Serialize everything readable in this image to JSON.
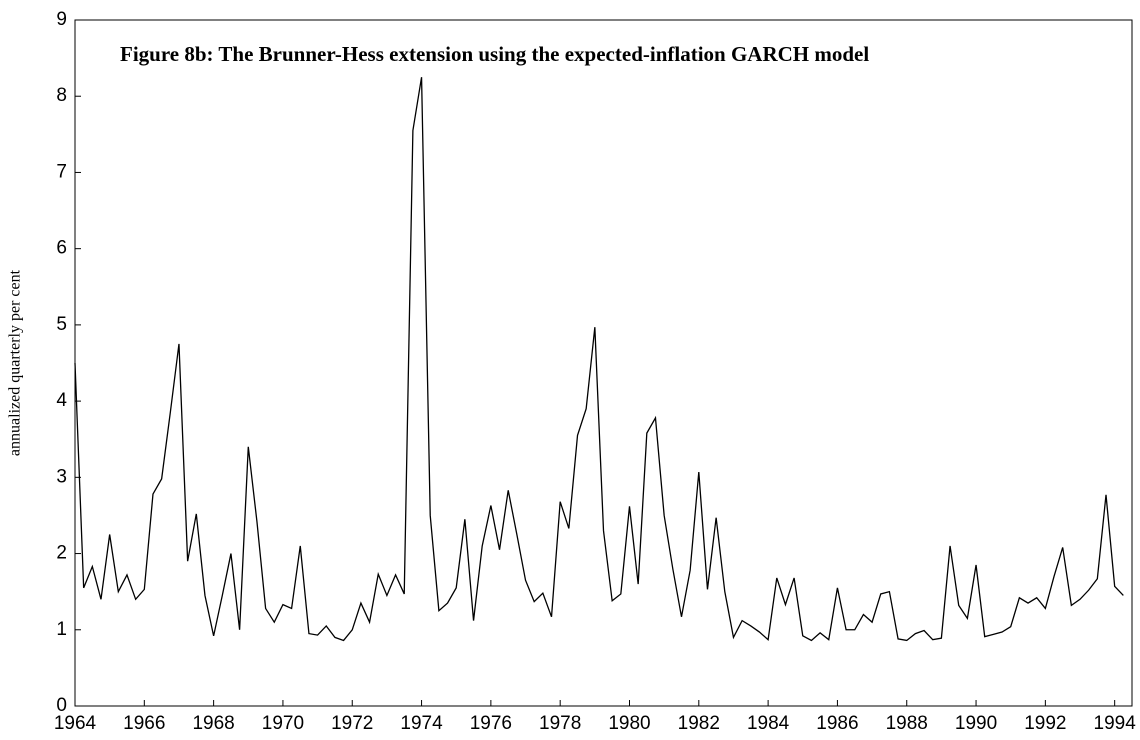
{
  "chart_data": {
    "type": "line",
    "title": "Figure 8b: The Brunner-Hess extension using the expected-inflation GARCH model",
    "y_label": "annualized quarterly per cent",
    "color": "#000000",
    "x": [
      1964,
      1964.25,
      1964.5,
      1964.75,
      1965,
      1965.25,
      1965.5,
      1965.75,
      1966,
      1966.25,
      1966.5,
      1966.75,
      1967,
      1967.25,
      1967.5,
      1967.75,
      1968,
      1968.25,
      1968.5,
      1968.75,
      1969,
      1969.25,
      1969.5,
      1969.75,
      1970,
      1970.25,
      1970.5,
      1970.75,
      1971,
      1971.25,
      1971.5,
      1971.75,
      1972,
      1972.25,
      1972.5,
      1972.75,
      1973,
      1973.25,
      1973.5,
      1973.75,
      1974,
      1974.25,
      1974.5,
      1974.75,
      1975,
      1975.25,
      1975.5,
      1975.75,
      1976,
      1976.25,
      1976.5,
      1976.75,
      1977,
      1977.25,
      1977.5,
      1977.75,
      1978,
      1978.25,
      1978.5,
      1978.75,
      1979,
      1979.25,
      1979.5,
      1979.75,
      1980,
      1980.25,
      1980.5,
      1980.75,
      1981,
      1981.25,
      1981.5,
      1981.75,
      1982,
      1982.25,
      1982.5,
      1982.75,
      1983,
      1983.25,
      1983.5,
      1983.75,
      1984,
      1984.25,
      1984.5,
      1984.75,
      1985,
      1985.25,
      1985.5,
      1985.75,
      1986,
      1986.25,
      1986.5,
      1986.75,
      1987,
      1987.25,
      1987.5,
      1987.75,
      1988,
      1988.25,
      1988.5,
      1988.75,
      1989,
      1989.25,
      1989.5,
      1989.75,
      1990,
      1990.25,
      1990.5,
      1990.75,
      1991,
      1991.25,
      1991.5,
      1991.75,
      1992,
      1992.25,
      1992.5,
      1992.75,
      1993,
      1993.25,
      1993.5,
      1993.75,
      1994,
      1994.25
    ],
    "values": [
      4.5,
      1.55,
      1.83,
      1.4,
      2.25,
      1.5,
      1.72,
      1.4,
      1.53,
      2.78,
      2.98,
      3.85,
      4.75,
      1.9,
      2.52,
      1.45,
      0.92,
      1.45,
      2.0,
      1.0,
      3.4,
      2.42,
      1.28,
      1.1,
      1.33,
      1.28,
      2.1,
      0.95,
      0.93,
      1.05,
      0.9,
      0.86,
      1.0,
      1.35,
      1.1,
      1.73,
      1.45,
      1.72,
      1.47,
      7.55,
      8.25,
      2.5,
      1.25,
      1.35,
      1.55,
      2.45,
      1.12,
      2.1,
      2.63,
      2.05,
      2.83,
      2.25,
      1.65,
      1.37,
      1.48,
      1.17,
      2.68,
      2.33,
      3.55,
      3.9,
      4.97,
      2.3,
      1.38,
      1.47,
      2.62,
      1.6,
      3.58,
      3.78,
      2.5,
      1.8,
      1.17,
      1.78,
      3.07,
      1.53,
      2.47,
      1.5,
      0.9,
      1.12,
      1.05,
      0.97,
      0.87,
      1.68,
      1.33,
      1.68,
      0.92,
      0.86,
      0.96,
      0.87,
      1.55,
      1.0,
      1.0,
      1.2,
      1.1,
      1.47,
      1.5,
      0.88,
      0.86,
      0.95,
      0.99,
      0.87,
      0.89,
      2.1,
      1.32,
      1.15,
      1.85,
      0.91,
      0.94,
      0.97,
      1.04,
      1.42,
      1.35,
      1.42,
      1.28,
      1.7,
      2.08,
      1.32,
      1.4,
      1.52,
      1.67,
      2.77,
      1.57,
      1.45
    ],
    "xlim": [
      1964,
      1994.5
    ],
    "xticks": [
      1964,
      1966,
      1968,
      1970,
      1972,
      1974,
      1976,
      1978,
      1980,
      1982,
      1984,
      1986,
      1988,
      1990,
      1992,
      1994
    ],
    "ylim": [
      0,
      9
    ],
    "yticks": [
      0,
      1,
      2,
      3,
      4,
      5,
      6,
      7,
      8,
      9
    ],
    "grid": false
  }
}
